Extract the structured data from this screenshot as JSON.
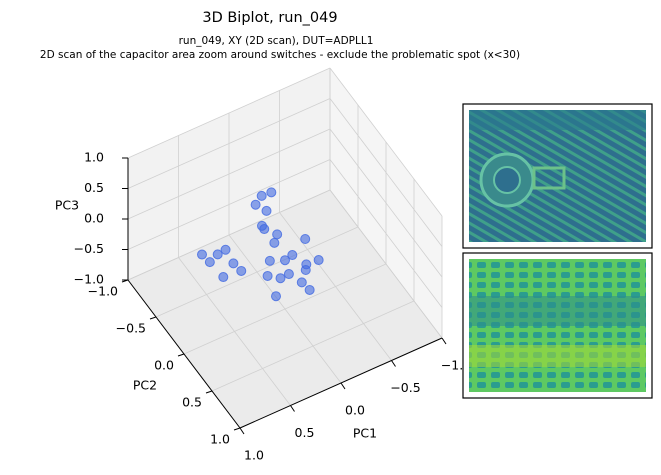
{
  "chart_data": {
    "type": "scatter3d",
    "title": "3D Biplot, run_049",
    "subtitle": [
      "run_049, XY (2D scan), DUT=ADPLL1",
      "2D scan of the capacitor area zoom around switches - exclude the problematic spot (x<30)"
    ],
    "x_label": "PC1",
    "y_label": "PC2",
    "z_label": "PC3",
    "color": "#4169e1",
    "grid": true,
    "xlim": [
      -1,
      1
    ],
    "ylim": [
      -1,
      1
    ],
    "zlim": [
      -1,
      1
    ],
    "xticks": [
      {
        "value": -1,
        "label": "−1.0"
      },
      {
        "value": -0.5,
        "label": "−0.5"
      },
      {
        "value": 0,
        "label": "0.0"
      },
      {
        "value": 0.5,
        "label": "0.5"
      },
      {
        "value": 1,
        "label": "1.0"
      }
    ],
    "yticks": [
      {
        "value": -1,
        "label": "−1.0"
      },
      {
        "value": -0.5,
        "label": "−0.5"
      },
      {
        "value": 0,
        "label": "0.0"
      },
      {
        "value": 0.5,
        "label": "0.5"
      },
      {
        "value": 1,
        "label": "1.0"
      }
    ],
    "zticks": [
      {
        "value": -1,
        "label": "−1.0"
      },
      {
        "value": -0.5,
        "label": "−0.5"
      },
      {
        "value": 0,
        "label": "0.0"
      },
      {
        "value": 0.5,
        "label": "0.5"
      },
      {
        "value": 1,
        "label": "1.0"
      }
    ],
    "x": [
      0,
      0.1,
      -0.1,
      -0.2,
      0.2,
      0,
      -0.15,
      0.05,
      -0.1,
      0.15,
      -0.25,
      0.1,
      -0.05,
      0.2,
      0.15,
      0.1,
      0.12,
      0.08,
      0.2,
      0.05,
      0.18,
      0.4,
      0.5,
      0.55,
      0.45,
      0.6,
      0.35,
      0.5
    ],
    "y": [
      0,
      0.1,
      0.2,
      0,
      0.2,
      0.3,
      0.1,
      -0.1,
      -0.05,
      0,
      0.15,
      0.25,
      0.35,
      0.05,
      -0.1,
      -0.15,
      -0.2,
      -0.1,
      -0.05,
      -0.05,
      -0.2,
      -0.2,
      -0.3,
      -0.35,
      -0.25,
      -0.4,
      -0.15,
      -0.2
    ],
    "z": [
      -0.2,
      -0.3,
      -0.1,
      0,
      -0.4,
      -0.2,
      -0.35,
      0,
      -0.25,
      -0.1,
      -0.2,
      -0.05,
      -0.3,
      -0.25,
      0.3,
      0.5,
      0.7,
      0.85,
      0.45,
      0.2,
      0.6,
      -0.2,
      -0.1,
      -0.25,
      0,
      -0.15,
      -0.3,
      -0.35
    ]
  }
}
